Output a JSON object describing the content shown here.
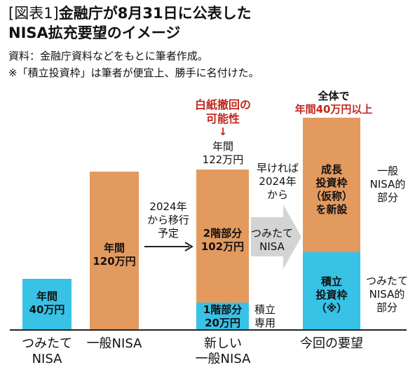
{
  "title": {
    "bracket": "[図表1]",
    "line1": "金融庁が8月31日に公表した",
    "line2": "NISA拡充要望のイメージ"
  },
  "notes": {
    "source": "資料：金融庁資料などをもとに筆者作成。",
    "remark": "※「積立投資枠」は筆者が便宜上、勝手に名付けた。"
  },
  "columns": {
    "tsumitate": {
      "box": [
        "年間",
        "40万円"
      ],
      "category": [
        "つみたて",
        "NISA"
      ]
    },
    "ippan": {
      "box": [
        "年間",
        "120万円"
      ],
      "category": [
        "一般NISA"
      ]
    },
    "new": {
      "withdrawn": [
        "白紙撤回の",
        "可能性"
      ],
      "arrow": "↓",
      "top": [
        "年間",
        "122万円"
      ],
      "floor2": [
        "2階部分",
        "102万円"
      ],
      "floor1": [
        "1階部分",
        "20万円"
      ],
      "side": [
        "積立",
        "専用"
      ],
      "category": [
        "新しい",
        "一般NISA"
      ]
    },
    "request": {
      "total_head": "全体で",
      "total_red": "年間40万円以上",
      "growth": [
        "成長",
        "投資枠",
        "（仮称）",
        "を新設"
      ],
      "accum": [
        "積立",
        "投資枠",
        "（※）"
      ],
      "side_top": [
        "一般",
        "NISA的",
        "部分"
      ],
      "side_bottom": [
        "つみたて",
        "NISA的",
        "部分"
      ],
      "category": [
        "今回の要望"
      ]
    }
  },
  "arrow1": [
    "2024年",
    "から移行",
    "予定"
  ],
  "arrow2": {
    "above": [
      "早ければ",
      "2024年",
      "から"
    ],
    "inside": [
      "つみたて",
      "NISA"
    ]
  },
  "colors": {
    "orange": "#e39a5f",
    "cyan": "#37c2e6",
    "red": "#c0281e",
    "gray_arrow": "#d4d4d4"
  }
}
